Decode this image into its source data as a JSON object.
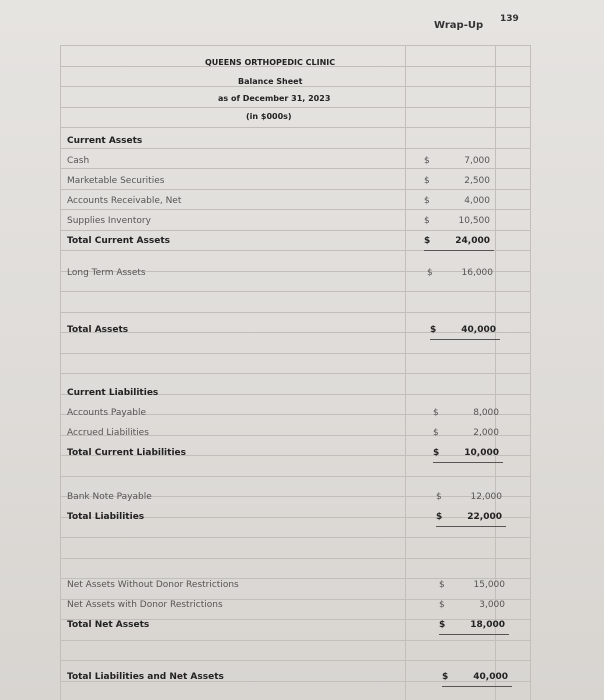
{
  "page": {
    "section": "Wrap-Up",
    "number": "139"
  },
  "balance_sheet": {
    "header": {
      "organization": "QUEENS ORTHOPEDIC CLINIC",
      "statement": "Balance Sheet",
      "date": "as of December 31, 2023",
      "units": "(in $000s)"
    },
    "groups": [
      {
        "heading": "Current Assets",
        "items": [
          {
            "label": "Cash",
            "currency": "$",
            "amount": "7,000"
          },
          {
            "label": "Marketable Securities",
            "currency": "$",
            "amount": "2,500"
          },
          {
            "label": "Accounts Receivable, Net",
            "currency": "$",
            "amount": "4,000"
          },
          {
            "label": "Supplies Inventory",
            "currency": "$",
            "amount": "10,500"
          }
        ],
        "total": {
          "label": "Total Current Assets",
          "currency": "$",
          "amount": "24,000"
        }
      },
      {
        "items": [
          {
            "label": "Long Term Assets",
            "currency": "$",
            "amount": "16,000"
          }
        ]
      },
      {
        "total": {
          "label": "Total Assets",
          "currency": "$",
          "amount": "40,000"
        }
      },
      {
        "heading": "Current Liabilities",
        "items": [
          {
            "label": "Accounts Payable",
            "currency": "$",
            "amount": "8,000"
          },
          {
            "label": "Accrued Liabilities",
            "currency": "$",
            "amount": "2,000"
          }
        ],
        "total": {
          "label": "Total Current Liabilities",
          "currency": "$",
          "amount": "10,000"
        }
      },
      {
        "items": [
          {
            "label": "Bank Note Payable",
            "currency": "$",
            "amount": "12,000"
          }
        ],
        "total": {
          "label": "Total Liabilities",
          "currency": "$",
          "amount": "22,000"
        }
      },
      {
        "items": [
          {
            "label": "Net Assets Without Donor Restrictions",
            "currency": "$",
            "amount": "15,000"
          },
          {
            "label": "Net Assets with Donor Restrictions",
            "currency": "$",
            "amount": "3,000"
          }
        ],
        "total": {
          "label": "Total Net Assets",
          "currency": "$",
          "amount": "18,000"
        }
      },
      {
        "total": {
          "label": "Total Liabilities and Net Assets",
          "currency": "$",
          "amount": "40,000"
        }
      }
    ]
  }
}
